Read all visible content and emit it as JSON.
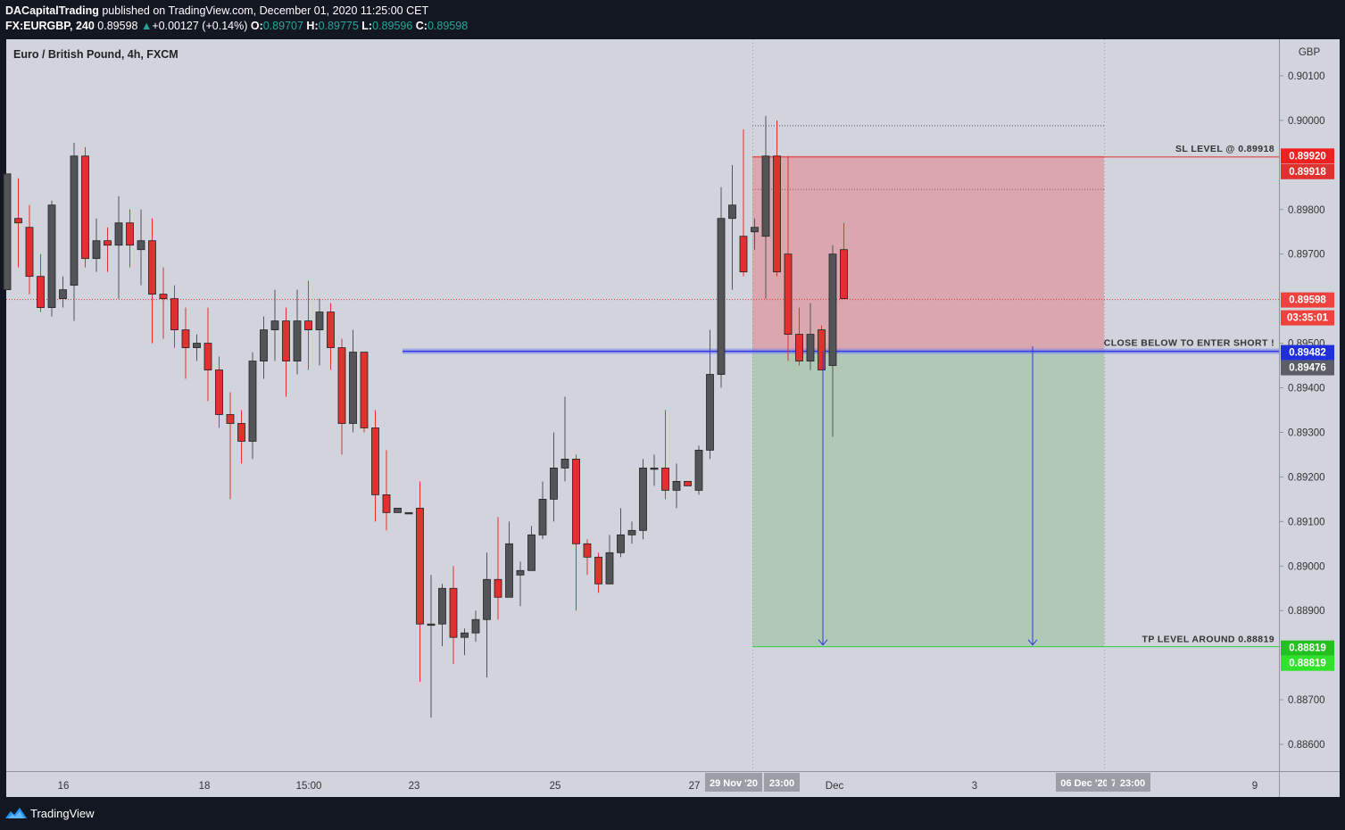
{
  "header": {
    "publisher": "DACapitalTrading",
    "published_text": "published on TradingView.com, December 01, 2020 11:25:00 CET",
    "symbol_interval": "FX:EURGBP, 240",
    "last": "0.89598",
    "change": "+0.00127 (+0.14%)",
    "o_label": "O:",
    "o": "0.89707",
    "h_label": "H:",
    "h": "0.89775",
    "l_label": "L:",
    "l": "0.89596",
    "c_label": "C:",
    "c": "0.89598"
  },
  "footer": {
    "brand": "TradingView"
  },
  "colors": {
    "bull": "#535457",
    "bear": "#e0312e",
    "background": "#d1d4dc",
    "stop_zone": "#db9fa4",
    "target_zone": "#acc8b3",
    "entry_line": "#2b3ae0"
  },
  "chart_data": {
    "type": "candlestick",
    "title": "Euro / British Pound, 4h, FXCM",
    "currency_label": "GBP",
    "ylim": [
      0.8854,
      0.9021
    ],
    "y_ticks": [
      "0.90100",
      "0.90000",
      "0.89800",
      "0.89700",
      "0.89500",
      "0.89400",
      "0.89300",
      "0.89200",
      "0.89100",
      "0.89000",
      "0.88900",
      "0.88700",
      "0.88600"
    ],
    "x_ticks": [
      "16",
      "18",
      "15:00",
      "23",
      "25",
      "27",
      "Dec",
      "3",
      "9"
    ],
    "x_tick_dates": [
      "2020-11-16",
      "2020-11-18",
      "2020-11-19 15:00",
      "2020-11-23",
      "2020-11-25",
      "2020-11-27",
      "2020-12-01",
      "2020-12-03",
      "2020-12-09"
    ],
    "x_range_labels": [
      "29 Nov '20",
      "23:00",
      "06 Dec '20",
      "7",
      "23:00"
    ],
    "candles": [
      [
        0.8962,
        0.8988,
        0.8975,
        0.8978
      ],
      [
        0.8978,
        0.8977,
        0.8987,
        0.8967
      ],
      [
        0.8976,
        0.8965,
        0.8981,
        0.8961
      ],
      [
        0.8965,
        0.8958,
        0.897,
        0.8957
      ],
      [
        0.8958,
        0.8981,
        0.8982,
        0.8956
      ],
      [
        0.896,
        0.8962,
        0.8965,
        0.8958
      ],
      [
        0.8963,
        0.8992,
        0.8995,
        0.8955
      ],
      [
        0.8992,
        0.8969,
        0.8994,
        0.8967
      ],
      [
        0.8969,
        0.8973,
        0.8978,
        0.8966
      ],
      [
        0.8973,
        0.8972,
        0.8976,
        0.8966
      ],
      [
        0.8972,
        0.8977,
        0.8983,
        0.896
      ],
      [
        0.8977,
        0.8972,
        0.898,
        0.8967
      ],
      [
        0.8971,
        0.8973,
        0.898,
        0.8963
      ],
      [
        0.8973,
        0.8961,
        0.8978,
        0.895
      ],
      [
        0.8961,
        0.896,
        0.8967,
        0.8951
      ],
      [
        0.896,
        0.8953,
        0.8963,
        0.8949
      ],
      [
        0.8953,
        0.8949,
        0.8958,
        0.8942
      ],
      [
        0.8949,
        0.895,
        0.8952,
        0.8946
      ],
      [
        0.895,
        0.8944,
        0.8958,
        0.8937
      ],
      [
        0.8944,
        0.8934,
        0.8947,
        0.8931
      ],
      [
        0.8934,
        0.8932,
        0.8939,
        0.8915
      ],
      [
        0.8932,
        0.8928,
        0.8935,
        0.8923
      ],
      [
        0.8928,
        0.8946,
        0.8948,
        0.8924
      ],
      [
        0.8946,
        0.8953,
        0.8956,
        0.8942
      ],
      [
        0.8953,
        0.8955,
        0.8962,
        0.8946
      ],
      [
        0.8955,
        0.8946,
        0.8958,
        0.8938
      ],
      [
        0.8946,
        0.8955,
        0.8962,
        0.8943
      ],
      [
        0.8955,
        0.8953,
        0.8964,
        0.8944
      ],
      [
        0.8953,
        0.8957,
        0.896,
        0.8945
      ],
      [
        0.8957,
        0.8949,
        0.8959,
        0.8944
      ],
      [
        0.8949,
        0.8932,
        0.8951,
        0.8925
      ],
      [
        0.8932,
        0.8948,
        0.8953,
        0.893
      ],
      [
        0.8948,
        0.8931,
        0.8947,
        0.893
      ],
      [
        0.8931,
        0.8916,
        0.8935,
        0.891
      ],
      [
        0.8916,
        0.8912,
        0.8926,
        0.8908
      ],
      [
        0.8912,
        0.8913,
        0.8912,
        0.8912
      ],
      [
        0.8912,
        0.8912,
        0.8912,
        0.8912
      ],
      [
        0.8913,
        0.8887,
        0.8919,
        0.8874
      ],
      [
        0.8887,
        0.8887,
        0.8898,
        0.8866
      ],
      [
        0.8887,
        0.8895,
        0.8896,
        0.8882
      ],
      [
        0.8895,
        0.8884,
        0.89,
        0.8878
      ],
      [
        0.8884,
        0.8885,
        0.8886,
        0.888
      ],
      [
        0.8885,
        0.8888,
        0.889,
        0.8883
      ],
      [
        0.8888,
        0.8897,
        0.8903,
        0.8875
      ],
      [
        0.8897,
        0.8893,
        0.8911,
        0.8888
      ],
      [
        0.8893,
        0.8905,
        0.891,
        0.8894
      ],
      [
        0.8898,
        0.8899,
        0.8901,
        0.8891
      ],
      [
        0.8899,
        0.8907,
        0.8909,
        0.8899
      ],
      [
        0.8907,
        0.8915,
        0.8919,
        0.8906
      ],
      [
        0.8915,
        0.8922,
        0.893,
        0.891
      ],
      [
        0.8922,
        0.8924,
        0.8938,
        0.8919
      ],
      [
        0.8924,
        0.8905,
        0.8925,
        0.889
      ],
      [
        0.8905,
        0.8902,
        0.8906,
        0.8898
      ],
      [
        0.8902,
        0.8896,
        0.8903,
        0.8894
      ],
      [
        0.8896,
        0.8903,
        0.8907,
        0.8897
      ],
      [
        0.8903,
        0.8907,
        0.8913,
        0.8902
      ],
      [
        0.8907,
        0.8908,
        0.891,
        0.8905
      ],
      [
        0.8908,
        0.8922,
        0.8924,
        0.8906
      ],
      [
        0.8922,
        0.8922,
        0.8925,
        0.8918
      ],
      [
        0.8922,
        0.8917,
        0.8935,
        0.8915
      ],
      [
        0.8917,
        0.8919,
        0.8923,
        0.8913
      ],
      [
        0.8919,
        0.8918,
        0.8919,
        0.8918
      ],
      [
        0.8917,
        0.8926,
        0.8927,
        0.8916
      ],
      [
        0.8926,
        0.8943,
        0.8953,
        0.8924
      ],
      [
        0.8943,
        0.8978,
        0.8985,
        0.894
      ],
      [
        0.8978,
        0.8981,
        0.899,
        0.8962
      ],
      [
        0.8974,
        0.8966,
        0.8998,
        0.8965
      ],
      [
        0.8975,
        0.8976,
        0.8978,
        0.8971
      ],
      [
        0.8974,
        0.8992,
        0.9001,
        0.896
      ],
      [
        0.8992,
        0.8966,
        0.9,
        0.8965
      ],
      [
        0.897,
        0.8952,
        0.8992,
        0.8946
      ],
      [
        0.8952,
        0.8946,
        0.8958,
        0.8945
      ],
      [
        0.8946,
        0.8952,
        0.8959,
        0.8944
      ],
      [
        0.8953,
        0.8944,
        0.8954,
        0.8944
      ],
      [
        0.8945,
        0.897,
        0.8972,
        0.8929
      ],
      [
        0.8971,
        0.896,
        0.8977,
        0.896
      ]
    ],
    "lines": {
      "sl": 0.89918,
      "entry": 0.89482,
      "stop_top": 0.8992,
      "tp": 0.88819,
      "dotted_high": 0.89988,
      "dotted_mid": 0.89845,
      "current": 0.89598
    },
    "annotations": {
      "sl": "SL LEVEL @ 0.89918",
      "entry": "CLOSE BELOW TO ENTER SHORT !",
      "tp": "TP LEVEL AROUND 0.88819"
    },
    "price_labels": {
      "sl_top": "0.89920",
      "sl": "0.89918",
      "last": "0.89598",
      "countdown": "03:35:01",
      "entry": "0.89482",
      "entry2": "0.89476",
      "tp": "0.88819",
      "tp2": "0.88819"
    }
  }
}
